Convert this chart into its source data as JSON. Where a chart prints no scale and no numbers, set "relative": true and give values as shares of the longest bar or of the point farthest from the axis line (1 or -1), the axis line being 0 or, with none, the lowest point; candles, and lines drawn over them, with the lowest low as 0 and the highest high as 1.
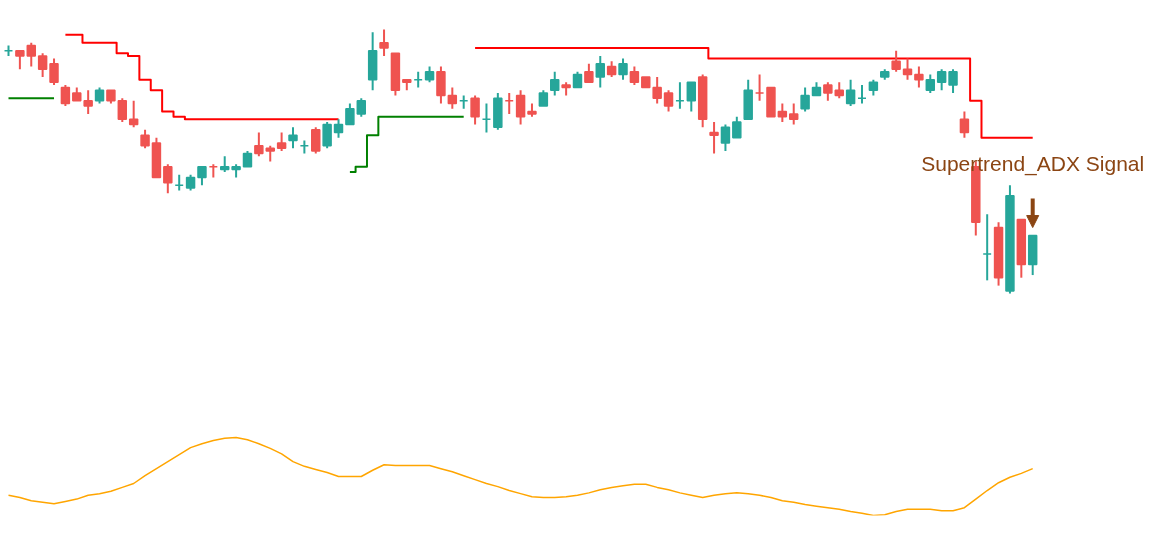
{
  "chart_data": [
    {
      "type": "candlestick",
      "relative": true,
      "categories": [
        null,
        null,
        null,
        null,
        null,
        null,
        null,
        null,
        null,
        null,
        null,
        null,
        null,
        null,
        null,
        null,
        null,
        null,
        null,
        null,
        null,
        null,
        null,
        null,
        null,
        null,
        null,
        null,
        null,
        null,
        null,
        null,
        null,
        null,
        null,
        null,
        null,
        null,
        null,
        null,
        null,
        null,
        null,
        null,
        null,
        null,
        null,
        null,
        null,
        null,
        null,
        null,
        null,
        null,
        null,
        null,
        null,
        null,
        null,
        null,
        null,
        null,
        null,
        null,
        null,
        null,
        null,
        null,
        null,
        null,
        null,
        null,
        null,
        null,
        null,
        null,
        null,
        null,
        null,
        null,
        null,
        null,
        null,
        null,
        null,
        null,
        null,
        null,
        null,
        null,
        null
      ],
      "ohlc": [
        [
          0.92,
          0.94,
          0.9,
          0.92
        ],
        [
          0.92,
          0.92,
          0.85,
          0.9
        ],
        [
          0.94,
          0.95,
          0.86,
          0.9
        ],
        [
          0.9,
          0.91,
          0.82,
          0.85
        ],
        [
          0.87,
          0.89,
          0.79,
          0.8
        ],
        [
          0.78,
          0.79,
          0.71,
          0.72
        ],
        [
          0.76,
          0.78,
          0.73,
          0.73
        ],
        [
          0.73,
          0.77,
          0.68,
          0.71
        ],
        [
          0.73,
          0.78,
          0.72,
          0.77
        ],
        [
          0.77,
          0.77,
          0.72,
          0.73
        ],
        [
          0.73,
          0.74,
          0.65,
          0.66
        ],
        [
          0.66,
          0.73,
          0.63,
          0.64
        ],
        [
          0.6,
          0.62,
          0.55,
          0.56
        ],
        [
          0.57,
          0.59,
          0.44,
          0.44
        ],
        [
          0.48,
          0.49,
          0.38,
          0.42
        ],
        [
          0.41,
          0.45,
          0.39,
          0.41
        ],
        [
          0.4,
          0.45,
          0.39,
          0.44
        ],
        [
          0.44,
          0.48,
          0.41,
          0.48
        ],
        [
          0.48,
          0.49,
          0.44,
          0.48
        ],
        [
          0.47,
          0.52,
          0.46,
          0.48
        ],
        [
          0.47,
          0.49,
          0.44,
          0.48
        ],
        [
          0.48,
          0.54,
          0.48,
          0.53
        ],
        [
          0.56,
          0.61,
          0.52,
          0.53
        ],
        [
          0.55,
          0.56,
          0.5,
          0.54
        ],
        [
          0.57,
          0.61,
          0.54,
          0.55
        ],
        [
          0.58,
          0.63,
          0.55,
          0.6
        ],
        [
          0.56,
          0.58,
          0.53,
          0.56
        ],
        [
          0.62,
          0.63,
          0.53,
          0.54
        ],
        [
          0.56,
          0.65,
          0.55,
          0.64
        ],
        [
          0.61,
          0.66,
          0.59,
          0.64
        ],
        [
          0.64,
          0.72,
          0.64,
          0.7
        ],
        [
          0.68,
          0.74,
          0.67,
          0.73
        ],
        [
          0.81,
          0.99,
          0.77,
          0.92
        ],
        [
          0.95,
          1,
          0.9,
          0.93
        ],
        [
          0.91,
          0.91,
          0.75,
          0.77
        ],
        [
          0.81,
          0.81,
          0.77,
          0.8
        ],
        [
          0.81,
          0.84,
          0.78,
          0.81
        ],
        [
          0.81,
          0.86,
          0.8,
          0.84
        ],
        [
          0.84,
          0.86,
          0.72,
          0.75
        ],
        [
          0.75,
          0.78,
          0.7,
          0.72
        ],
        [
          0.73,
          0.75,
          0.7,
          0.73
        ],
        [
          0.74,
          0.75,
          0.64,
          0.67
        ],
        [
          0.66,
          0.72,
          0.61,
          0.66
        ],
        [
          0.63,
          0.76,
          0.62,
          0.74
        ],
        [
          0.73,
          0.76,
          0.68,
          0.73
        ],
        [
          0.75,
          0.77,
          0.64,
          0.67
        ],
        [
          0.69,
          0.72,
          0.67,
          0.68
        ],
        [
          0.71,
          0.77,
          0.71,
          0.76
        ],
        [
          0.77,
          0.84,
          0.75,
          0.81
        ],
        [
          0.79,
          0.8,
          0.75,
          0.78
        ],
        [
          0.78,
          0.84,
          0.78,
          0.83
        ],
        [
          0.84,
          0.87,
          0.8,
          0.8
        ],
        [
          0.82,
          0.9,
          0.78,
          0.87
        ],
        [
          0.86,
          0.88,
          0.82,
          0.83
        ],
        [
          0.83,
          0.89,
          0.81,
          0.87
        ],
        [
          0.84,
          0.86,
          0.79,
          0.8
        ],
        [
          0.82,
          0.82,
          0.78,
          0.78
        ],
        [
          0.78,
          0.82,
          0.72,
          0.74
        ],
        [
          0.76,
          0.77,
          0.69,
          0.71
        ],
        [
          0.73,
          0.8,
          0.7,
          0.73
        ],
        [
          0.73,
          0.8,
          0.69,
          0.8
        ],
        [
          0.82,
          0.83,
          0.63,
          0.66
        ],
        [
          0.61,
          0.65,
          0.53,
          0.6
        ],
        [
          0.57,
          0.64,
          0.54,
          0.63
        ],
        [
          0.59,
          0.67,
          0.59,
          0.65
        ],
        [
          0.66,
          0.81,
          0.66,
          0.77
        ],
        [
          0.76,
          0.83,
          0.73,
          0.76
        ],
        [
          0.78,
          0.78,
          0.67,
          0.67
        ],
        [
          0.69,
          0.72,
          0.65,
          0.67
        ],
        [
          0.68,
          0.72,
          0.64,
          0.66
        ],
        [
          0.7,
          0.78,
          0.69,
          0.75
        ],
        [
          0.75,
          0.8,
          0.75,
          0.78
        ],
        [
          0.79,
          0.8,
          0.73,
          0.76
        ],
        [
          0.77,
          0.8,
          0.74,
          0.75
        ],
        [
          0.72,
          0.81,
          0.71,
          0.77
        ],
        [
          0.74,
          0.79,
          0.72,
          0.74
        ],
        [
          0.77,
          0.81,
          0.75,
          0.8
        ],
        [
          0.82,
          0.85,
          0.81,
          0.84
        ],
        [
          0.88,
          0.92,
          0.84,
          0.85
        ],
        [
          0.85,
          0.89,
          0.81,
          0.83
        ],
        [
          0.83,
          0.86,
          0.78,
          0.81
        ],
        [
          0.77,
          0.83,
          0.76,
          0.81
        ],
        [
          0.8,
          0.85,
          0.77,
          0.84
        ],
        [
          0.79,
          0.85,
          0.76,
          0.84
        ],
        [
          0.66,
          0.69,
          0.59,
          0.61
        ],
        [
          0.48,
          0.5,
          0.22,
          0.27
        ],
        [
          0.15,
          0.3,
          0.05,
          0.15
        ],
        [
          0.25,
          0.27,
          0.03,
          0.06
        ],
        [
          0.01,
          0.41,
          0,
          0.37
        ],
        [
          0.28,
          0.28,
          0.06,
          0.11
        ],
        [
          0.11,
          0.22,
          0.07,
          0.22
        ]
      ],
      "colors": [
        "#26a69a",
        "#ef5350",
        "#ef5350",
        "#ef5350",
        "#ef5350",
        "#ef5350",
        "#ef5350",
        "#ef5350",
        "#26a69a",
        "#ef5350",
        "#ef5350",
        "#ef5350",
        "#ef5350",
        "#ef5350",
        "#ef5350",
        "#26a69a",
        "#26a69a",
        "#26a69a",
        "#ef5350",
        "#26a69a",
        "#26a69a",
        "#26a69a",
        "#ef5350",
        "#ef5350",
        "#ef5350",
        "#26a69a",
        "#26a69a",
        "#ef5350",
        "#26a69a",
        "#26a69a",
        "#26a69a",
        "#26a69a",
        "#26a69a",
        "#ef5350",
        "#ef5350",
        "#ef5350",
        "#26a69a",
        "#26a69a",
        "#ef5350",
        "#ef5350",
        "#26a69a",
        "#ef5350",
        "#26a69a",
        "#26a69a",
        "#ef5350",
        "#ef5350",
        "#ef5350",
        "#26a69a",
        "#26a69a",
        "#ef5350",
        "#26a69a",
        "#ef5350",
        "#26a69a",
        "#ef5350",
        "#26a69a",
        "#ef5350",
        "#ef5350",
        "#ef5350",
        "#ef5350",
        "#26a69a",
        "#26a69a",
        "#ef5350",
        "#ef5350",
        "#26a69a",
        "#26a69a",
        "#26a69a",
        "#ef5350",
        "#ef5350",
        "#ef5350",
        "#ef5350",
        "#26a69a",
        "#26a69a",
        "#ef5350",
        "#ef5350",
        "#26a69a",
        "#26a69a",
        "#26a69a",
        "#26a69a",
        "#ef5350",
        "#ef5350",
        "#ef5350",
        "#26a69a",
        "#26a69a",
        "#26a69a",
        "#ef5350",
        "#ef5350",
        "#26a69a",
        "#ef5350",
        "#26a69a",
        "#ef5350",
        "#26a69a"
      ],
      "series": [
        {
          "type": "step",
          "color": "#ff0000",
          "values": [
            null,
            null,
            null,
            null,
            null,
            0.98,
            0.98,
            0.95,
            0.95,
            0.95,
            0.91,
            0.9,
            0.81,
            0.77,
            0.69,
            0.67,
            0.66,
            0.66,
            0.66,
            0.66,
            0.66,
            0.66,
            0.66,
            0.66,
            0.66,
            0.66,
            0.66,
            0.66,
            0.66,
            0.66,
            null,
            null,
            null,
            null,
            null,
            null,
            null,
            null,
            null,
            null,
            null,
            0.93,
            0.93,
            0.93,
            0.93,
            0.93,
            0.93,
            0.93,
            0.93,
            0.93,
            0.93,
            0.93,
            0.93,
            0.93,
            0.93,
            0.93,
            0.93,
            0.93,
            0.93,
            0.93,
            0.93,
            0.93,
            0.89,
            0.89,
            0.89,
            0.89,
            0.89,
            0.89,
            0.89,
            0.89,
            0.89,
            0.89,
            0.89,
            0.89,
            0.89,
            0.89,
            0.89,
            0.89,
            0.89,
            0.89,
            0.89,
            0.89,
            0.89,
            0.89,
            0.89,
            0.73,
            0.59,
            0.59,
            0.59,
            0.59,
            0.59
          ]
        },
        {
          "type": "step",
          "color": "#008000",
          "values": [
            0.74,
            0.74,
            0.74,
            0.74,
            0.74,
            null,
            null,
            null,
            null,
            null,
            null,
            null,
            null,
            null,
            null,
            null,
            null,
            null,
            null,
            null,
            null,
            null,
            null,
            null,
            null,
            null,
            null,
            null,
            null,
            null,
            0.46,
            0.48,
            0.6,
            0.67,
            0.67,
            0.67,
            0.67,
            0.67,
            0.67,
            0.67,
            0.67,
            null,
            null,
            null,
            null,
            null,
            null,
            null,
            null,
            null,
            null,
            null,
            null,
            null,
            null,
            null,
            null,
            null,
            null,
            null,
            null,
            null,
            null,
            null,
            null,
            null,
            null,
            null,
            null,
            null,
            null,
            null,
            null,
            null,
            null,
            null,
            null,
            null,
            null,
            null,
            null,
            null,
            null,
            null,
            null,
            null,
            null,
            null,
            null,
            null,
            null
          ]
        }
      ],
      "annotations": [
        "Supertrend_ADX Signal"
      ]
    },
    {
      "type": "line",
      "relative": true,
      "categories": [
        null,
        null,
        null,
        null,
        null,
        null,
        null,
        null,
        null,
        null,
        null,
        null,
        null,
        null,
        null,
        null,
        null,
        null,
        null,
        null,
        null,
        null,
        null,
        null,
        null,
        null,
        null,
        null,
        null,
        null,
        null,
        null,
        null,
        null,
        null,
        null,
        null,
        null,
        null,
        null,
        null,
        null,
        null,
        null,
        null,
        null,
        null,
        null,
        null,
        null,
        null,
        null,
        null,
        null,
        null,
        null,
        null,
        null,
        null,
        null,
        null,
        null,
        null,
        null,
        null,
        null,
        null,
        null,
        null,
        null,
        null,
        null,
        null,
        null,
        null,
        null,
        null,
        null,
        null,
        null,
        null,
        null,
        null,
        null,
        null,
        null,
        null,
        null,
        null,
        null,
        null
      ],
      "series": [
        {
          "color": "#ffa500",
          "values": [
            0.26,
            0.23,
            0.19,
            0.17,
            0.15,
            0.18,
            0.21,
            0.26,
            0.28,
            0.31,
            0.36,
            0.41,
            0.51,
            0.6,
            0.69,
            0.78,
            0.87,
            0.92,
            0.96,
            0.99,
            1,
            0.97,
            0.92,
            0.86,
            0.79,
            0.69,
            0.63,
            0.59,
            0.55,
            0.5,
            0.5,
            0.5,
            0.58,
            0.65,
            0.64,
            0.64,
            0.64,
            0.64,
            0.6,
            0.56,
            0.51,
            0.46,
            0.41,
            0.37,
            0.32,
            0.28,
            0.24,
            0.23,
            0.23,
            0.24,
            0.26,
            0.29,
            0.33,
            0.36,
            0.38,
            0.4,
            0.4,
            0.36,
            0.33,
            0.29,
            0.26,
            0.23,
            0.26,
            0.28,
            0.29,
            0.28,
            0.26,
            0.23,
            0.19,
            0.17,
            0.14,
            0.12,
            0.1,
            0.08,
            0.05,
            0.03,
            0,
            0.01,
            0.05,
            0.08,
            0.08,
            0.08,
            0.06,
            0.06,
            0.1,
            0.21,
            0.32,
            0.42,
            0.49,
            0.54,
            0.6
          ]
        }
      ]
    }
  ]
}
